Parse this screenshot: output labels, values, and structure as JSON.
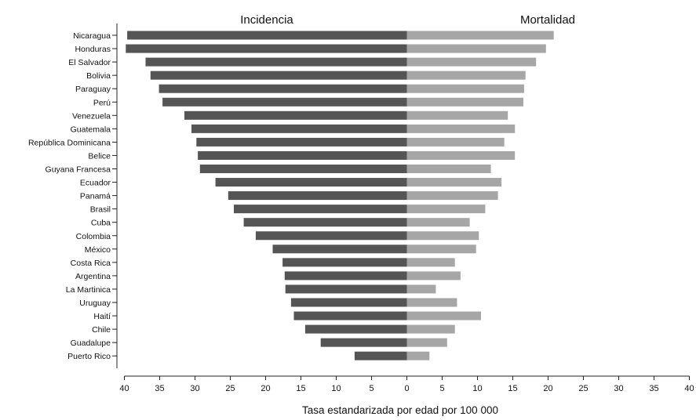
{
  "chart_data": {
    "type": "bar",
    "layout": "diverging-horizontal",
    "left_title": "Incidencia",
    "right_title": "Mortalidad",
    "xlabel": "Tasa estandarizada por edad por 100 000",
    "xlim": [
      -40,
      40
    ],
    "x_tick_labels": [
      "40",
      "35",
      "30",
      "25",
      "20",
      "15",
      "10",
      "5",
      "0",
      "5",
      "10",
      "15",
      "20",
      "25",
      "30",
      "35",
      "40"
    ],
    "grid": false,
    "categories": [
      "Nicaragua",
      "Honduras",
      "El Salvador",
      "Bolivia",
      "Paraguay",
      "Perú",
      "Venezuela",
      "Guatemala",
      "República Dominicana",
      "Belice",
      "Guyana Francesa",
      "Ecuador",
      "Panamá",
      "Brasil",
      "Cuba",
      "Colombia",
      "México",
      "Costa Rica",
      "Argentina",
      "La Martinica",
      "Uruguay",
      "Haití",
      "Chile",
      "Guadalupe",
      "Puerto Rico"
    ],
    "series": [
      {
        "name": "Incidencia",
        "color": "#555555",
        "values": [
          39.6,
          39.8,
          37.0,
          36.3,
          35.1,
          34.6,
          31.5,
          30.5,
          29.8,
          29.6,
          29.3,
          27.1,
          25.3,
          24.5,
          23.1,
          21.4,
          19.0,
          17.6,
          17.3,
          17.2,
          16.4,
          16.0,
          14.4,
          12.2,
          7.4
        ]
      },
      {
        "name": "Mortalidad",
        "color": "#a6a6a6",
        "values": [
          20.8,
          19.7,
          18.3,
          16.8,
          16.6,
          16.5,
          14.3,
          15.3,
          13.8,
          15.3,
          11.9,
          13.4,
          12.9,
          11.1,
          8.9,
          10.2,
          9.8,
          6.8,
          7.6,
          4.1,
          7.1,
          10.5,
          6.8,
          5.7,
          3.2
        ]
      }
    ]
  }
}
